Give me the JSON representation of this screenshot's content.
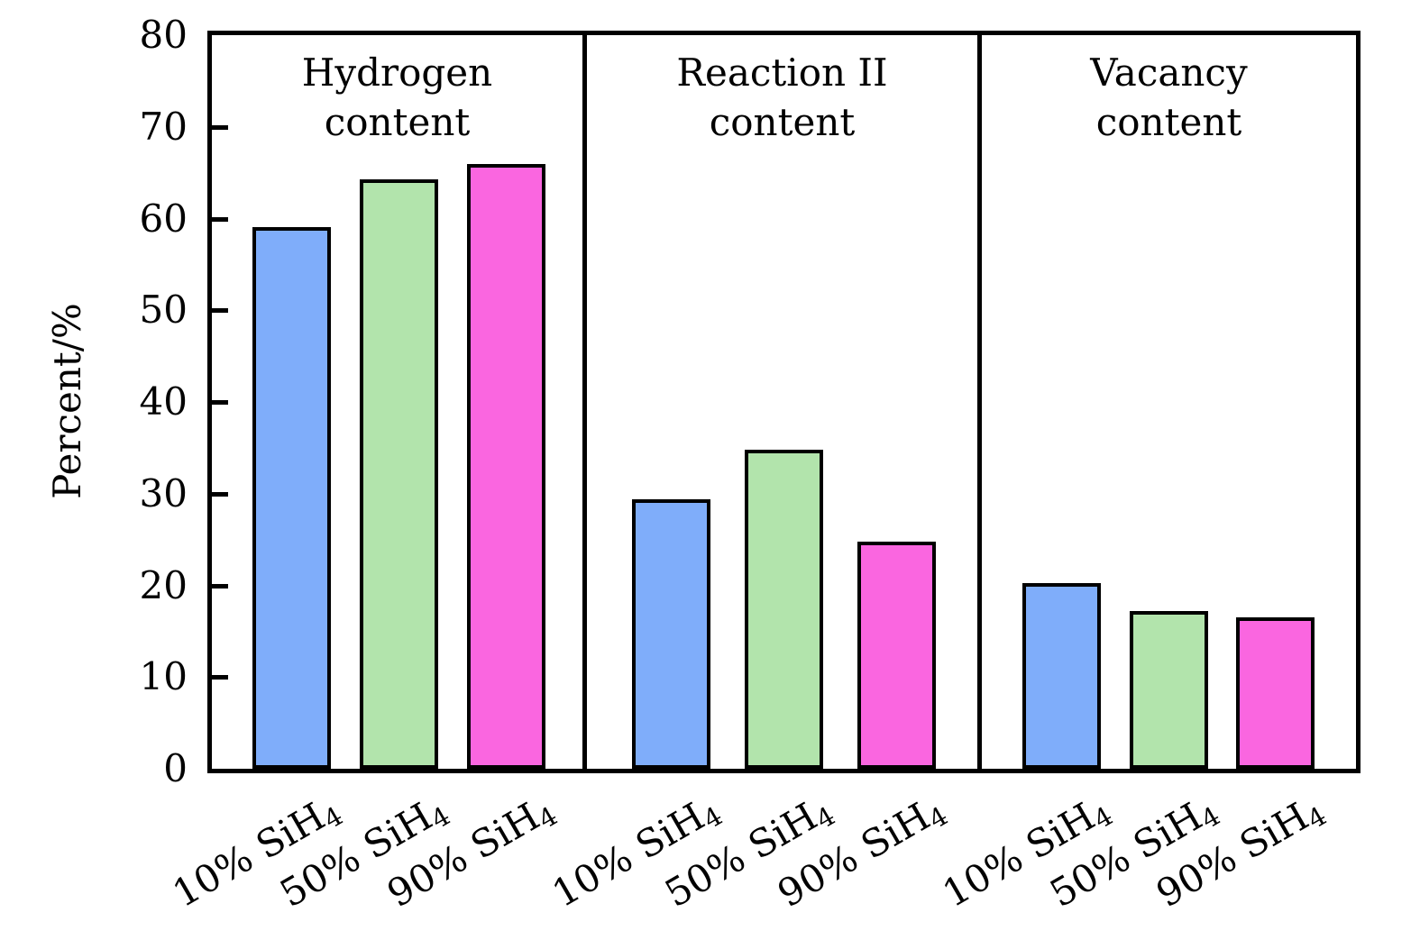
{
  "chart_data": {
    "type": "bar",
    "title": "",
    "ylabel": "Percent/%",
    "xlabel": "",
    "ylim": [
      0,
      80
    ],
    "yticks": [
      0,
      10,
      20,
      30,
      40,
      50,
      60,
      70,
      80
    ],
    "grid": false,
    "legend_position": "none",
    "categories": [
      "10% SiH4",
      "50% SiH4",
      "90% SiH4"
    ],
    "category_label_parts": [
      {
        "main": "10% SiH",
        "sub": "4"
      },
      {
        "main": "50% SiH",
        "sub": "4"
      },
      {
        "main": "90% SiH",
        "sub": "4"
      }
    ],
    "bar_colors": [
      "#7fadfa",
      "#b2e4ac",
      "#fa66e0"
    ],
    "bar_border_color": "#000000",
    "panels": [
      {
        "title_line1": "Hydrogen",
        "title_line2": "content",
        "values": [
          59.1,
          64.3,
          65.9
        ]
      },
      {
        "title_line1": "Reaction II",
        "title_line2": "content",
        "values": [
          29.4,
          34.8,
          24.8
        ]
      },
      {
        "title_line1": "Vacancy",
        "title_line2": "content",
        "values": [
          20.2,
          17.2,
          16.5
        ]
      }
    ]
  }
}
